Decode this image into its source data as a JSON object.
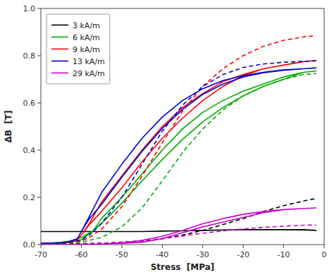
{
  "chart_data": {
    "type": "line",
    "xlabel": "Stress  [MPa]",
    "ylabel": "ΔB  [T]",
    "xlim": [
      -70,
      0
    ],
    "ylim": [
      0,
      1
    ],
    "xticks": [
      -70,
      -60,
      -50,
      -40,
      -30,
      -20,
      -10,
      0
    ],
    "yticks": [
      {
        "value": 0,
        "label": "0.0"
      },
      0.2,
      0.4,
      0.6,
      0.8,
      {
        "value": 1,
        "label": "1.0"
      }
    ],
    "grid": false,
    "legend": "upper-left",
    "series": [
      {
        "name": "3 kA/m",
        "color": "#000000",
        "line_style": "solid",
        "x": [
          -70,
          -65,
          -60,
          -55,
          -50,
          -45,
          -40,
          -35,
          -30,
          -25,
          -20,
          -15,
          -10,
          -5,
          -2,
          -2,
          -5,
          -10,
          -15,
          -20,
          -25,
          -30,
          -35,
          -40,
          -45,
          -50,
          -55,
          -60,
          -65,
          -70
        ],
        "values": [
          0.055,
          0.055,
          0.055,
          0.055,
          0.055,
          0.055,
          0.057,
          0.058,
          0.06,
          0.062,
          0.063,
          0.063,
          0.063,
          0.063,
          0.06,
          0.06,
          0.062,
          0.063,
          0.063,
          0.063,
          0.062,
          0.06,
          0.058,
          0.057,
          0.055,
          0.055,
          0.055,
          0.055,
          0.055,
          0.055
        ]
      },
      {
        "color": "#000000",
        "line_style": "dashed",
        "x": [
          -70,
          -65,
          -60,
          -55,
          -50,
          -45,
          -40,
          -35,
          -30,
          -25,
          -20,
          -15,
          -10,
          -5,
          -2
        ],
        "values": [
          0.002,
          0.003,
          0.004,
          0.006,
          0.01,
          0.015,
          0.025,
          0.04,
          0.06,
          0.085,
          0.11,
          0.14,
          0.165,
          0.185,
          0.195
        ]
      },
      {
        "name": "6 kA/m",
        "color": "#00aa00",
        "line_style": "solid",
        "x": [
          -70,
          -67,
          -65,
          -63,
          -60,
          -57,
          -55,
          -50,
          -45,
          -40,
          -35,
          -30,
          -25,
          -20,
          -15,
          -10,
          -5,
          -2,
          -2,
          -5,
          -10,
          -15,
          -20,
          -25,
          -30,
          -35,
          -40,
          -45,
          -50,
          -55,
          -57,
          -60,
          -63,
          -65,
          -67,
          -70
        ],
        "values": [
          0.005,
          0.006,
          0.007,
          0.01,
          0.02,
          0.06,
          0.11,
          0.2,
          0.3,
          0.4,
          0.49,
          0.56,
          0.61,
          0.65,
          0.68,
          0.71,
          0.73,
          0.735,
          0.735,
          0.73,
          0.7,
          0.67,
          0.63,
          0.58,
          0.52,
          0.445,
          0.36,
          0.27,
          0.175,
          0.09,
          0.06,
          0.03,
          0.015,
          0.01,
          0.007,
          0.005
        ]
      },
      {
        "color": "#00aa00",
        "line_style": "dashed",
        "x": [
          -70,
          -65,
          -60,
          -55,
          -50,
          -45,
          -40,
          -35,
          -30,
          -25,
          -20,
          -15,
          -10,
          -5,
          -2
        ],
        "values": [
          0.002,
          0.004,
          0.01,
          0.03,
          0.075,
          0.155,
          0.27,
          0.39,
          0.49,
          0.57,
          0.63,
          0.67,
          0.7,
          0.72,
          0.725
        ]
      },
      {
        "name": "9 kA/m",
        "color": "#ff0000",
        "line_style": "solid",
        "x": [
          -70,
          -67,
          -65,
          -63,
          -61,
          -60,
          -58,
          -55,
          -50,
          -45,
          -40,
          -35,
          -30,
          -25,
          -20,
          -15,
          -10,
          -5,
          -2,
          -2,
          -5,
          -10,
          -15,
          -20,
          -25,
          -30,
          -35,
          -40,
          -45,
          -50,
          -55,
          -58,
          -60,
          -61,
          -63,
          -65,
          -67,
          -70
        ],
        "values": [
          0.005,
          0.006,
          0.007,
          0.01,
          0.02,
          0.04,
          0.09,
          0.18,
          0.29,
          0.4,
          0.5,
          0.58,
          0.64,
          0.69,
          0.72,
          0.745,
          0.76,
          0.775,
          0.78,
          0.78,
          0.775,
          0.76,
          0.745,
          0.715,
          0.67,
          0.61,
          0.535,
          0.45,
          0.35,
          0.24,
          0.14,
          0.085,
          0.04,
          0.02,
          0.01,
          0.007,
          0.006,
          0.005
        ]
      },
      {
        "color": "#ff0000",
        "line_style": "dashed",
        "x": [
          -70,
          -65,
          -60,
          -58,
          -55,
          -50,
          -45,
          -40,
          -35,
          -30,
          -25,
          -20,
          -15,
          -10,
          -5,
          -2
        ],
        "values": [
          0.002,
          0.005,
          0.015,
          0.03,
          0.065,
          0.16,
          0.29,
          0.43,
          0.565,
          0.67,
          0.745,
          0.8,
          0.84,
          0.865,
          0.88,
          0.885
        ]
      },
      {
        "name": "13 kA/m",
        "color": "#0000cc",
        "line_style": "solid",
        "x": [
          -70,
          -67,
          -65,
          -63,
          -61,
          -60,
          -58,
          -55,
          -50,
          -45,
          -40,
          -35,
          -30,
          -25,
          -20,
          -15,
          -10,
          -5,
          -2,
          -2,
          -5,
          -10,
          -15,
          -20,
          -25,
          -30,
          -35,
          -40,
          -45,
          -50,
          -55,
          -58,
          -60,
          -61,
          -63,
          -65,
          -67,
          -70
        ],
        "values": [
          0.005,
          0.006,
          0.007,
          0.012,
          0.025,
          0.055,
          0.12,
          0.22,
          0.34,
          0.45,
          0.54,
          0.61,
          0.66,
          0.695,
          0.715,
          0.73,
          0.74,
          0.745,
          0.748,
          0.748,
          0.745,
          0.738,
          0.728,
          0.71,
          0.68,
          0.636,
          0.572,
          0.492,
          0.395,
          0.285,
          0.17,
          0.11,
          0.055,
          0.025,
          0.012,
          0.007,
          0.006,
          0.005
        ]
      },
      {
        "color": "#0000cc",
        "line_style": "dashed",
        "x": [
          -70,
          -65,
          -60,
          -58,
          -55,
          -50,
          -45,
          -40,
          -35,
          -30,
          -25,
          -20,
          -15,
          -10,
          -5,
          -2
        ],
        "values": [
          0.002,
          0.006,
          0.02,
          0.04,
          0.09,
          0.2,
          0.34,
          0.48,
          0.59,
          0.67,
          0.72,
          0.75,
          0.765,
          0.772,
          0.776,
          0.778
        ]
      },
      {
        "name": "29 kA/m",
        "color": "#cc00cc",
        "line_style": "solid",
        "x": [
          -70,
          -65,
          -60,
          -55,
          -50,
          -45,
          -40,
          -35,
          -30,
          -25,
          -20,
          -15,
          -10,
          -5,
          -2,
          -2,
          -5,
          -10,
          -15,
          -20,
          -25,
          -30,
          -35,
          -40,
          -45,
          -50,
          -55,
          -60,
          -65,
          -70
        ],
        "values": [
          0.0,
          0.0,
          0.001,
          0.002,
          0.005,
          0.01,
          0.025,
          0.05,
          0.075,
          0.095,
          0.115,
          0.135,
          0.148,
          0.153,
          0.155,
          0.155,
          0.153,
          0.148,
          0.14,
          0.128,
          0.11,
          0.088,
          0.06,
          0.035,
          0.018,
          0.007,
          0.002,
          0.001,
          0.0,
          0.0
        ]
      },
      {
        "color": "#cc00cc",
        "line_style": "dashed",
        "x": [
          -70,
          -65,
          -60,
          -55,
          -50,
          -45,
          -40,
          -35,
          -30,
          -25,
          -20,
          -15,
          -10,
          -5,
          -2
        ],
        "values": [
          0.0,
          0.001,
          0.002,
          0.005,
          0.01,
          0.016,
          0.025,
          0.036,
          0.048,
          0.058,
          0.066,
          0.073,
          0.078,
          0.082,
          0.083
        ]
      }
    ]
  }
}
